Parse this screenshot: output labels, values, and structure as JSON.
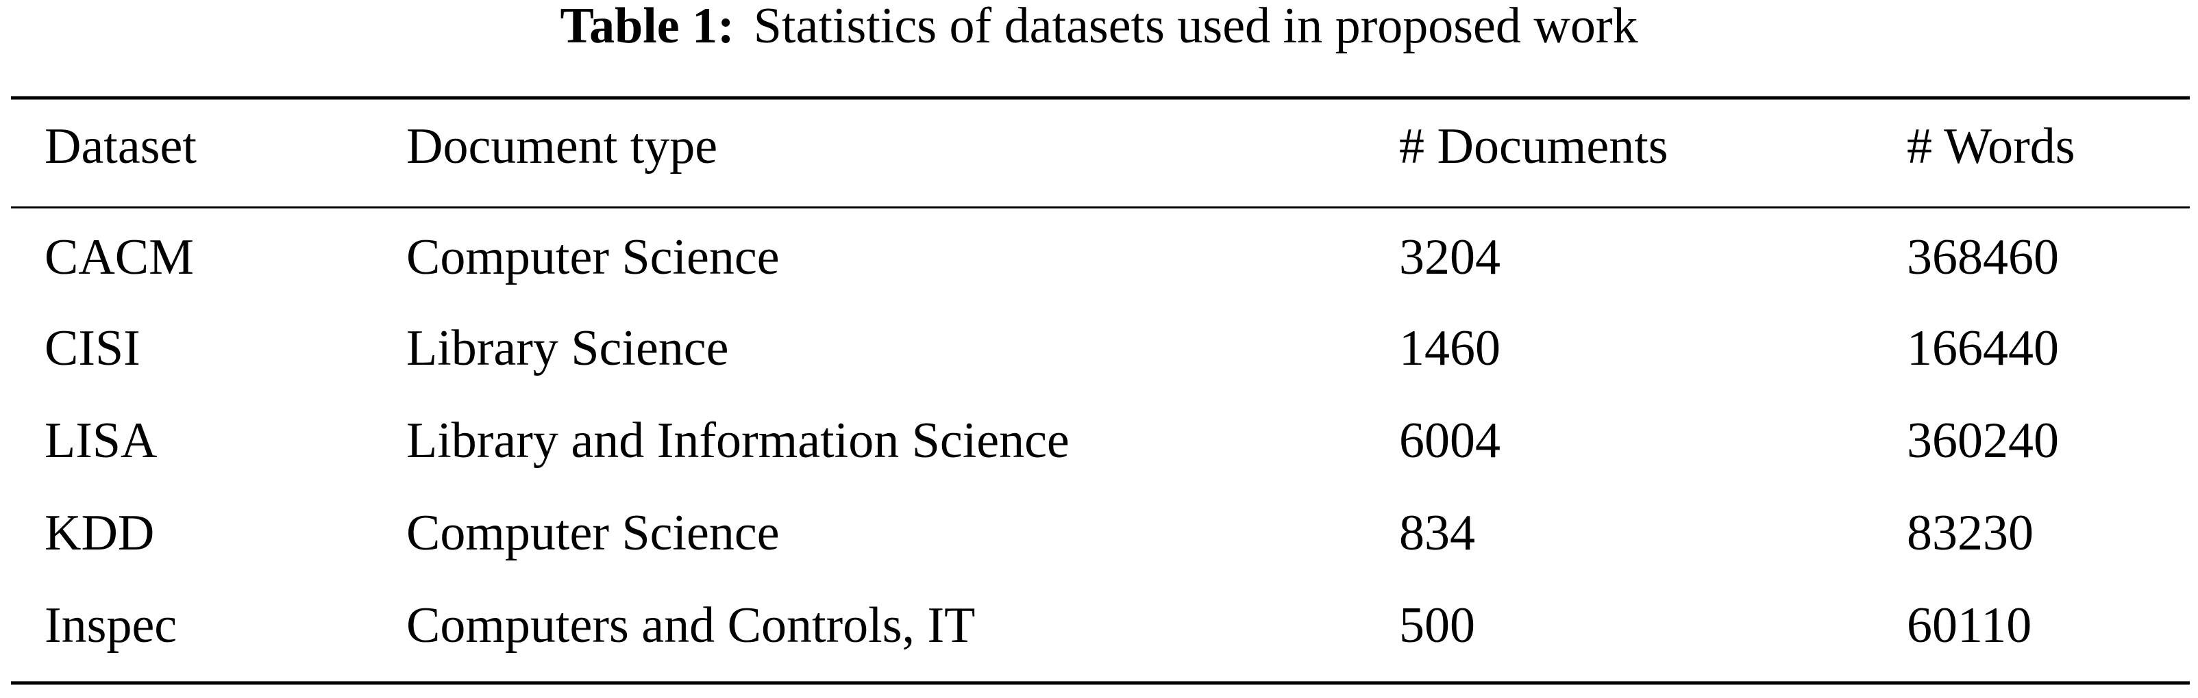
{
  "caption": {
    "label": "Table 1:",
    "text": "Statistics of datasets used in proposed work"
  },
  "table": {
    "header": [
      "Dataset",
      "Document type",
      "# Documents",
      "# Words"
    ],
    "rows": [
      [
        "CACM",
        "Computer Science",
        "3204",
        "368460"
      ],
      [
        "CISI",
        "Library Science",
        "1460",
        "166440"
      ],
      [
        "LISA",
        "Library and Information Science",
        "6004",
        "360240"
      ],
      [
        "KDD",
        "Computer Science",
        "834",
        "83230"
      ],
      [
        "Inspec",
        "Computers and Controls, IT",
        "500",
        "60110"
      ]
    ]
  }
}
